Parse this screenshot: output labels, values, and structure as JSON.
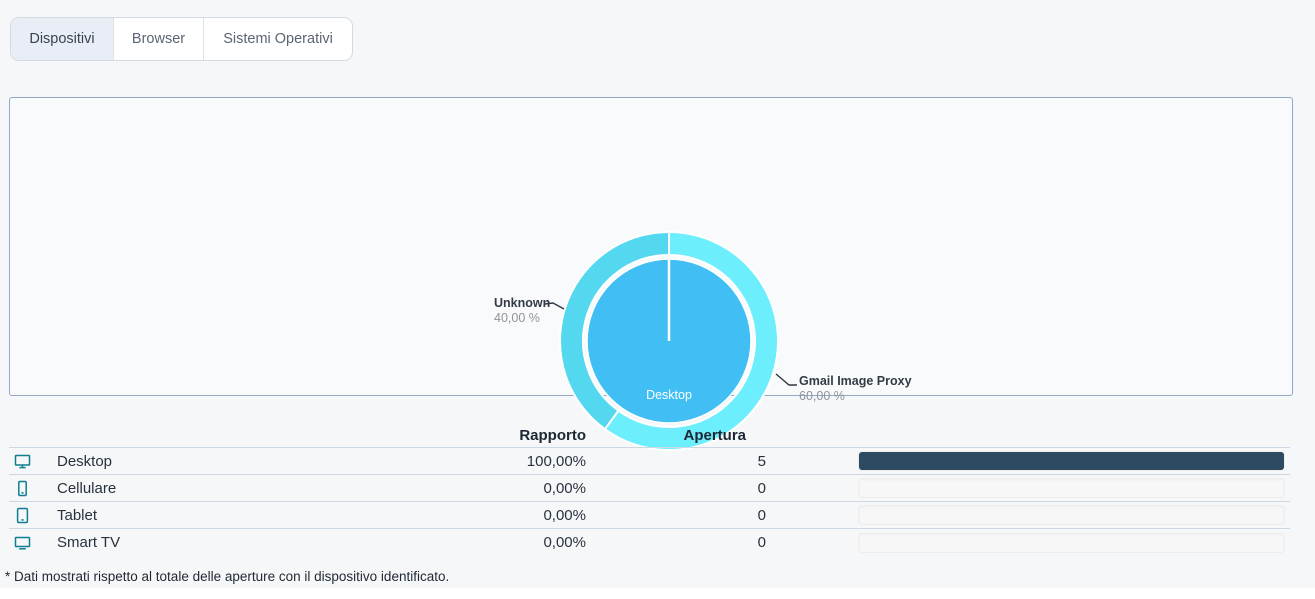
{
  "tabs": [
    {
      "label": "Dispositivi",
      "active": true
    },
    {
      "label": "Browser",
      "active": false
    },
    {
      "label": "Sistemi Operativi",
      "active": false
    }
  ],
  "chart_data": {
    "type": "pie",
    "title": "",
    "legend_position": "none",
    "inner": {
      "segments": [
        {
          "label": "Desktop",
          "percent": 100,
          "color": "#41bef4"
        }
      ]
    },
    "outer": {
      "segments": [
        {
          "label": "Gmail Image Proxy",
          "percent": 60,
          "percent_display": "60,00 %",
          "color": "#6ceefc"
        },
        {
          "label": "Unknown",
          "percent": 40,
          "percent_display": "40,00 %",
          "color": "#53d8f0"
        }
      ]
    }
  },
  "table": {
    "columns": [
      "Rapporto",
      "Apertura"
    ],
    "rows": [
      {
        "device": "Desktop",
        "icon": "desktop-icon",
        "rapporto": "100,00%",
        "apertura": "5",
        "bar_percent": 100
      },
      {
        "device": "Cellulare",
        "icon": "smartphone-icon",
        "rapporto": "0,00%",
        "apertura": "0",
        "bar_percent": 0
      },
      {
        "device": "Tablet",
        "icon": "tablet-icon",
        "rapporto": "0,00%",
        "apertura": "0",
        "bar_percent": 0
      },
      {
        "device": "Smart TV",
        "icon": "tv-icon",
        "rapporto": "0,00%",
        "apertura": "0",
        "bar_percent": 0
      }
    ]
  },
  "footnote": "* Dati mostrati rispetto al totale delle aperture con il dispositivo identificato.",
  "colors": {
    "icon_teal": "#0d7f90",
    "bar_fill": "#2d4a63",
    "panel_border": "#93a8c6",
    "active_tab_bg": "#e9eef6",
    "row_separator": "#ccd7e5"
  }
}
